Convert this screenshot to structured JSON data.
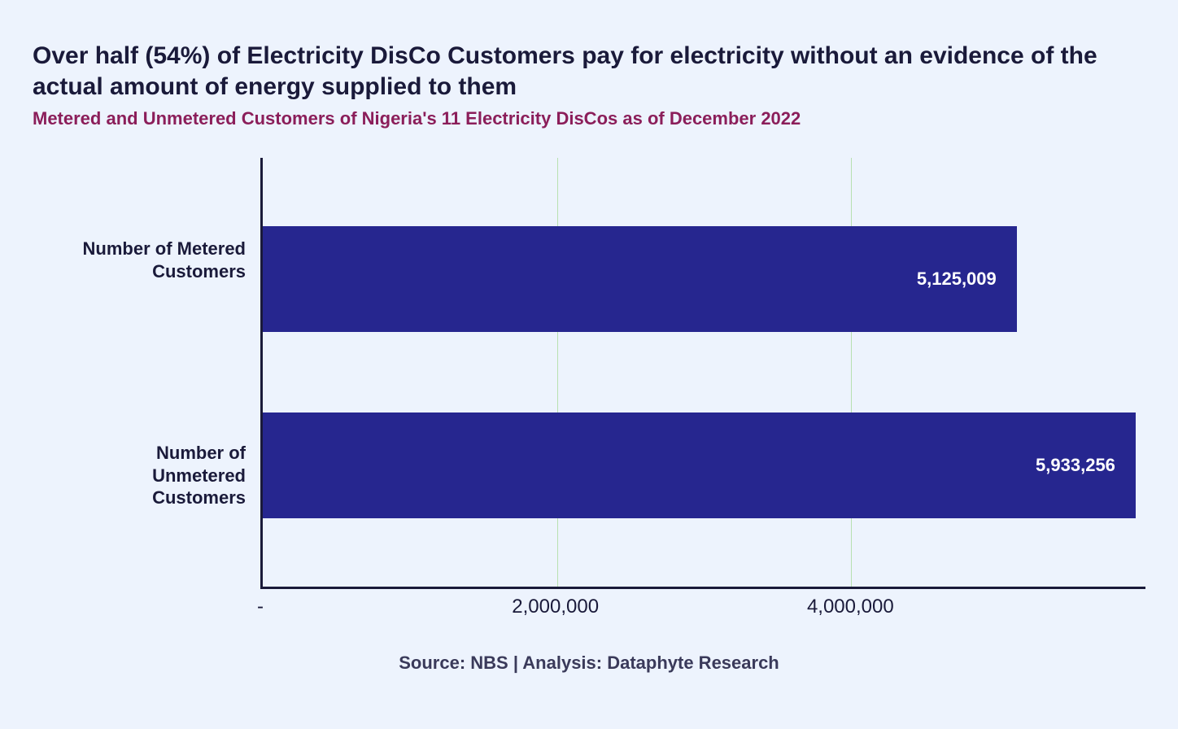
{
  "title": "Over half (54%) of Electricity DisCo Customers pay for electricity without an evidence of the actual amount of energy supplied to them",
  "subtitle": "Metered and Unmetered Customers of Nigeria's 11 Electricity DisCos as of December 2022",
  "source": "Source: NBS | Analysis: Dataphyte Research",
  "chart": {
    "type": "bar-horizontal",
    "background_color": "#edf3fd",
    "bar_color": "#26268f",
    "value_text_color": "#ffffff",
    "axis_color": "#1a1a3a",
    "grid_color": "#b8e0b0",
    "title_color": "#1a1a3a",
    "subtitle_color": "#8b1e5a",
    "title_fontsize": 30,
    "subtitle_fontsize": 22,
    "label_fontsize": 22,
    "value_fontsize": 22,
    "tick_fontsize": 24,
    "x_max": 6000000,
    "x_ticks": [
      {
        "value": 0,
        "label": "-"
      },
      {
        "value": 2000000,
        "label": "2,000,000"
      },
      {
        "value": 4000000,
        "label": "4,000,000"
      }
    ],
    "series": [
      {
        "label_line1": "Number of Metered",
        "label_line2": "Customers",
        "value": 5125009,
        "value_label": "5,125,009"
      },
      {
        "label_line1": "Number of",
        "label_line2": "Unmetered",
        "label_line3": "Customers",
        "value": 5933256,
        "value_label": "5,933,256"
      }
    ]
  }
}
